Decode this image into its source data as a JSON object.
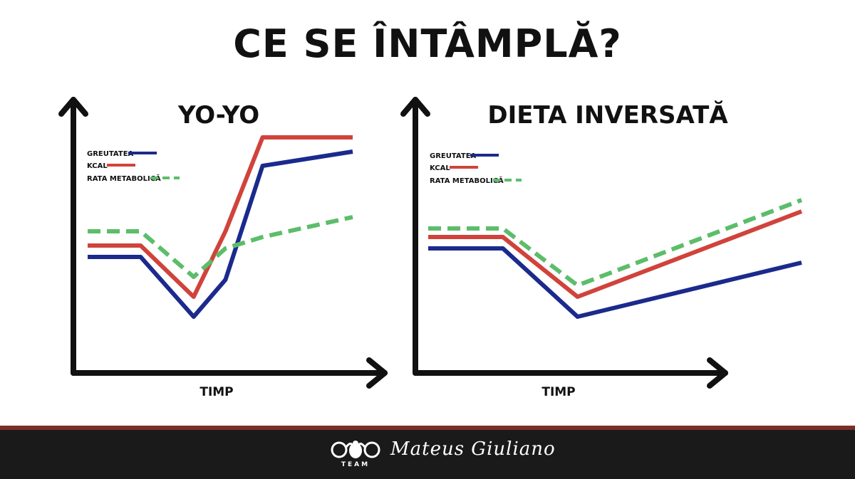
{
  "page": {
    "title": "CE SE ÎNTÂMPLĂ?"
  },
  "legend": {
    "items": [
      "GREUTATEA",
      "KCAL",
      "RATA METABOLICĂ"
    ]
  },
  "colors": {
    "greutatea": "#1b2a8c",
    "kcal": "#d0433b",
    "rata": "#5cbd6a",
    "axis": "#111111"
  },
  "footer": {
    "brand": "TEAM",
    "signature": "Mateus Giuliano"
  },
  "chart_data": [
    {
      "type": "line",
      "title": "YO-YO",
      "xlabel": "TIMP",
      "ylabel": "",
      "x": [
        0,
        1,
        2,
        2.6,
        3.3,
        5
      ],
      "series": [
        {
          "name": "GREUTATEA",
          "style": "solid",
          "values": [
            3.6,
            3.6,
            1.5,
            2.8,
            6.8,
            7.3
          ]
        },
        {
          "name": "KCAL",
          "style": "solid",
          "values": [
            4.0,
            4.0,
            2.2,
            4.5,
            7.8,
            7.8
          ]
        },
        {
          "name": "RATA METABOLICĂ",
          "style": "dashed",
          "values": [
            4.5,
            4.5,
            2.9,
            3.9,
            4.3,
            5.0
          ]
        }
      ]
    },
    {
      "type": "line",
      "title": "DIETA INVERSATĂ",
      "xlabel": "TIMP",
      "ylabel": "",
      "x": [
        0,
        1,
        2,
        5
      ],
      "series": [
        {
          "name": "GREUTATEA",
          "style": "solid",
          "values": [
            3.9,
            3.9,
            1.5,
            3.4
          ]
        },
        {
          "name": "KCAL",
          "style": "solid",
          "values": [
            4.3,
            4.3,
            2.2,
            5.2
          ]
        },
        {
          "name": "RATA METABOLICĂ",
          "style": "dashed",
          "values": [
            4.6,
            4.6,
            2.6,
            5.6
          ]
        }
      ]
    }
  ]
}
